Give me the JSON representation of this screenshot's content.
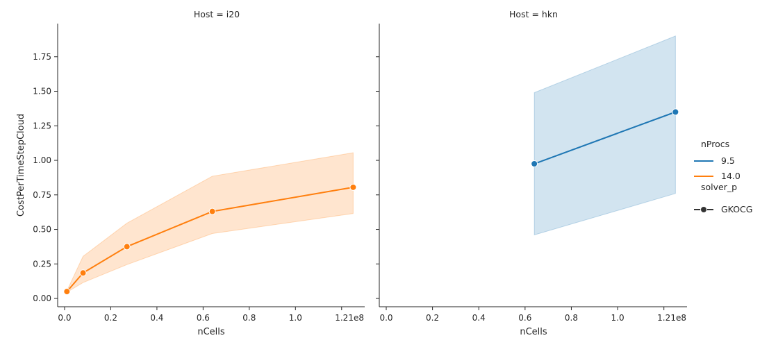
{
  "chart_data": {
    "type": "line",
    "facet_label": "Host",
    "x_label": "nCells",
    "y_label": "CostPerTimeStepCloud",
    "x_offset_text": "1e8",
    "x_ticks": [
      "0.0",
      "0.2",
      "0.4",
      "0.6",
      "0.8",
      "1.0",
      "1.2"
    ],
    "x_tick_values": [
      0.0,
      0.2,
      0.4,
      0.6,
      0.8,
      1.0,
      1.2
    ],
    "y_ticks": [
      "0.00",
      "0.25",
      "0.50",
      "0.75",
      "1.00",
      "1.25",
      "1.50",
      "1.75"
    ],
    "y_tick_values": [
      0.0,
      0.25,
      0.5,
      0.75,
      1.0,
      1.25,
      1.5,
      1.75
    ],
    "xlim": [
      -0.03,
      1.3
    ],
    "ylim": [
      -0.06,
      1.99
    ],
    "panels": [
      {
        "title": "Host = i20",
        "series": [
          {
            "name": "14.0",
            "color": "#ff7f0e",
            "x": [
              0.01,
              0.08,
              0.27,
              0.64,
              1.25
            ],
            "y": [
              0.05,
              0.185,
              0.375,
              0.63,
              0.805
            ],
            "ci_low": [
              0.045,
              0.115,
              0.245,
              0.47,
              0.615
            ],
            "ci_high": [
              0.055,
              0.305,
              0.545,
              0.885,
              1.055
            ]
          }
        ]
      },
      {
        "title": "Host = hkn",
        "series": [
          {
            "name": "9.5",
            "color": "#1f77b4",
            "x": [
              0.64,
              1.25
            ],
            "y": [
              0.975,
              1.35
            ],
            "ci_low": [
              0.46,
              0.76
            ],
            "ci_high": [
              1.49,
              1.9
            ]
          }
        ]
      }
    ],
    "legend": {
      "placement": "right",
      "hue_title": "nProcs",
      "hue_entries": [
        {
          "label": "9.5",
          "color": "#1f77b4"
        },
        {
          "label": "14.0",
          "color": "#ff7f0e"
        }
      ],
      "style_title": "solver_p",
      "style_entries": [
        {
          "label": "GKOCG",
          "color": "#333333"
        }
      ]
    }
  }
}
